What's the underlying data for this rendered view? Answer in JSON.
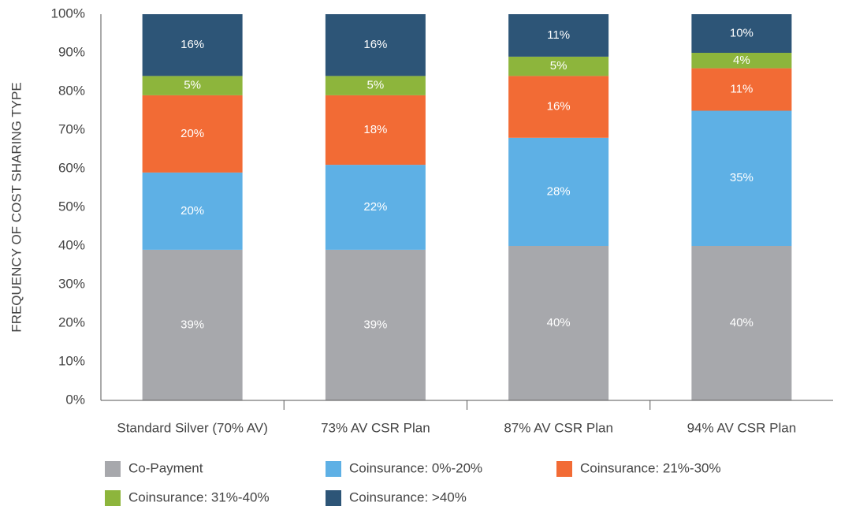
{
  "chart_data": {
    "type": "stacked_bar",
    "y_label": "FREQUENCY OF COST SHARING TYPE",
    "categories": [
      "Standard Silver (70% AV)",
      "73% AV CSR Plan",
      "87% AV CSR Plan",
      "94% AV CSR Plan"
    ],
    "series": [
      {
        "name": "Co-Payment",
        "color": "#a7a8ac",
        "values": [
          39,
          39,
          40,
          40
        ],
        "value_labels": [
          "39%",
          "39%",
          "40%",
          "40%"
        ]
      },
      {
        "name": "Coinsurance: 0%-20%",
        "color": "#5eb0e5",
        "values": [
          20,
          22,
          28,
          35
        ],
        "value_labels": [
          "20%",
          "22%",
          "28%",
          "35%"
        ]
      },
      {
        "name": "Coinsurance: 21%-30%",
        "color": "#f26b35",
        "values": [
          20,
          18,
          16,
          11
        ],
        "value_labels": [
          "20%",
          "18%",
          "16%",
          "11%"
        ]
      },
      {
        "name": "Coinsurance: 31%-40%",
        "color": "#8db53c",
        "values": [
          5,
          5,
          5,
          4
        ],
        "value_labels": [
          "5%",
          "5%",
          "5%",
          "4%"
        ]
      },
      {
        "name": "Coinsurance: >40%",
        "color": "#2d5577",
        "values": [
          16,
          16,
          11,
          10
        ],
        "value_labels": [
          "16%",
          "16%",
          "11%",
          "10%"
        ]
      }
    ],
    "ylim": [
      0,
      100
    ],
    "yticks": [
      {
        "value": 0,
        "label": "0%"
      },
      {
        "value": 10,
        "label": "10%"
      },
      {
        "value": 20,
        "label": "20%"
      },
      {
        "value": 30,
        "label": "30%"
      },
      {
        "value": 40,
        "label": "40%"
      },
      {
        "value": 50,
        "label": "50%"
      },
      {
        "value": 60,
        "label": "60%"
      },
      {
        "value": 70,
        "label": "70%"
      },
      {
        "value": 80,
        "label": "80%"
      },
      {
        "value": 90,
        "label": "90%"
      },
      {
        "value": 100,
        "label": "100%"
      }
    ],
    "legend": "bottom"
  }
}
